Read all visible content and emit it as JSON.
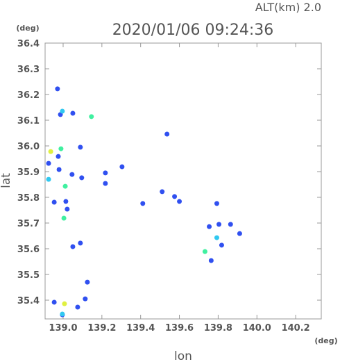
{
  "chart_data": {
    "type": "scatter",
    "title": "2020/01/06 09:24:36",
    "annotation": "ALT(km)  2.0",
    "x_unit": "(deg)",
    "y_unit": "(deg)",
    "x_label": "lon",
    "y_label": "lat",
    "xlim": [
      138.907,
      140.332
    ],
    "ylim": [
      35.327,
      36.4
    ],
    "xticks": [
      {
        "value": 139,
        "label": "139.0"
      },
      139.2,
      139.4,
      139.6,
      139.8,
      {
        "value": 140,
        "label": "140.0"
      },
      140.2
    ],
    "yticks": [
      35.4,
      35.5,
      35.6,
      35.7,
      35.8,
      35.9,
      {
        "value": 36,
        "label": "36.0"
      },
      36.1,
      36.2,
      36.3,
      36.4
    ],
    "series": [
      {
        "color": "#3050f0",
        "x": [
          138.971,
          139.05,
          138.986,
          139.089,
          138.975,
          138.925,
          138.979,
          139.046,
          139.096,
          139.218,
          139.304,
          139.218,
          138.954,
          139.014,
          139.021,
          139.511,
          139.536,
          139.411,
          139.575,
          139.6,
          139.793,
          139.804,
          139.864,
          139.911,
          139.754,
          139.818,
          139.764,
          139.089,
          139.05,
          139.125,
          139.114,
          138.954,
          139.075,
          138.996
        ],
        "values": [
          36.222,
          36.127,
          36.122,
          35.995,
          35.959,
          35.932,
          35.908,
          35.889,
          35.876,
          35.895,
          35.919,
          35.854,
          35.781,
          35.784,
          35.754,
          35.822,
          36.046,
          35.776,
          35.803,
          35.784,
          35.776,
          35.695,
          35.695,
          35.659,
          35.686,
          35.614,
          35.554,
          35.622,
          35.608,
          35.47,
          35.405,
          35.392,
          35.373,
          35.343
        ]
      },
      {
        "color": "#30c8f0",
        "x": [
          138.996,
          139.793,
          138.996,
          138.925
        ],
        "values": [
          36.135,
          35.643,
          35.346,
          35.87
        ]
      },
      {
        "color": "#40f0a0",
        "x": [
          139.146,
          138.989,
          139.011,
          139.004,
          139.732
        ],
        "values": [
          36.114,
          35.989,
          35.843,
          35.719,
          35.589
        ]
      },
      {
        "color": "#e0f040",
        "x": [
          138.936,
          139.007
        ],
        "values": [
          35.978,
          35.386
        ]
      }
    ]
  }
}
